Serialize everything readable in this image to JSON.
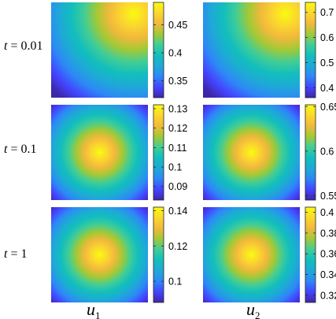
{
  "chart_data": {
    "type": "heatmap",
    "colormap": [
      "#3e26a8",
      "#4444ff",
      "#2e87f7",
      "#1ea9d7",
      "#12bebd",
      "#41cd96",
      "#a1c936",
      "#f1b93b",
      "#fbd72e",
      "#f9fb0e"
    ],
    "col_labels": [
      {
        "var": "u",
        "sub": "1"
      },
      {
        "var": "u",
        "sub": "2"
      }
    ],
    "row_labels": [
      {
        "var": "t",
        "text": " = 0.01"
      },
      {
        "var": "t",
        "text": " = 0.1"
      },
      {
        "var": "t",
        "text": " = 1"
      }
    ],
    "panels": [
      {
        "row": 0,
        "col": 0,
        "pattern": "corner",
        "clim": [
          0.32,
          0.49
        ],
        "ticks": [
          "0.45",
          "0.4",
          "0.35"
        ],
        "tick_values": [
          0.45,
          0.4,
          0.35
        ]
      },
      {
        "row": 0,
        "col": 1,
        "pattern": "corner",
        "clim": [
          0.36,
          0.74
        ],
        "ticks": [
          "0.7",
          "0.6",
          "0.5",
          "0.4"
        ],
        "tick_values": [
          0.7,
          0.6,
          0.5,
          0.4
        ]
      },
      {
        "row": 1,
        "col": 0,
        "pattern": "center",
        "clim": [
          0.083,
          0.132
        ],
        "ticks": [
          "0.13",
          "0.12",
          "0.11",
          "0.1",
          "0.09"
        ],
        "tick_values": [
          0.13,
          0.12,
          0.11,
          0.1,
          0.09
        ]
      },
      {
        "row": 1,
        "col": 1,
        "pattern": "center",
        "clim": [
          0.545,
          0.652
        ],
        "ticks": [
          "0.65",
          "0.6",
          "0.55"
        ],
        "tick_values": [
          0.65,
          0.6,
          0.55
        ]
      },
      {
        "row": 2,
        "col": 0,
        "pattern": "center",
        "clim": [
          0.088,
          0.142
        ],
        "ticks": [
          "0.14",
          "0.12",
          "0.1"
        ],
        "tick_values": [
          0.14,
          0.12,
          0.1
        ]
      },
      {
        "row": 2,
        "col": 1,
        "pattern": "center",
        "clim": [
          0.313,
          0.405
        ],
        "ticks": [
          "0.4",
          "0.38",
          "0.36",
          "0.34",
          "0.32"
        ],
        "tick_values": [
          0.4,
          0.38,
          0.36,
          0.34,
          0.32
        ]
      }
    ]
  }
}
